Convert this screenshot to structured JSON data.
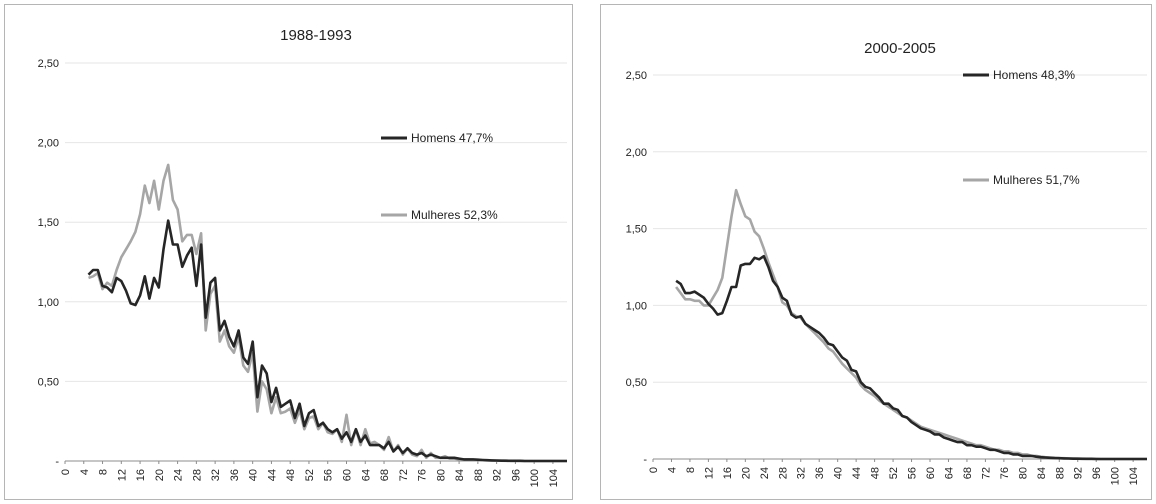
{
  "colors": {
    "homens": "#262626",
    "mulheres": "#a6a6a6",
    "grid": "#e6e6e6",
    "axis": "#8c8c8c"
  },
  "chart_data": [
    {
      "type": "line",
      "title": "1988-1993",
      "xlabel": "",
      "ylabel": "",
      "ylim": [
        0,
        2.5
      ],
      "y_ticks": [
        0,
        0.5,
        1.0,
        1.5,
        2.0,
        2.5
      ],
      "y_tick_labels": [
        "-",
        "0,50",
        "1,00",
        "1,50",
        "2,00",
        "2,50"
      ],
      "x_tick_labels": [
        "0",
        "4",
        "8",
        "12",
        "16",
        "20",
        "24",
        "28",
        "32",
        "36",
        "40",
        "44",
        "48",
        "52",
        "56",
        "60",
        "64",
        "68",
        "72",
        "76",
        "80",
        "84",
        "88",
        "92",
        "96",
        "100",
        "104"
      ],
      "xlim": [
        0,
        107
      ],
      "grid": true,
      "legend_placement": "right",
      "series": [
        {
          "name": "Homens 47,7%",
          "color": "#262626",
          "x": [
            5,
            6,
            7,
            8,
            9,
            10,
            11,
            12,
            13,
            14,
            15,
            16,
            17,
            18,
            19,
            20,
            21,
            22,
            23,
            24,
            25,
            26,
            27,
            28,
            29,
            30,
            31,
            32,
            33,
            34,
            35,
            36,
            37,
            38,
            39,
            40,
            41,
            42,
            43,
            44,
            45,
            46,
            47,
            48,
            49,
            50,
            51,
            52,
            53,
            54,
            55,
            56,
            57,
            58,
            59,
            60,
            61,
            62,
            63,
            64,
            65,
            66,
            67,
            68,
            69,
            70,
            71,
            72,
            73,
            74,
            75,
            76,
            77,
            78,
            79,
            80,
            81,
            82,
            83,
            84,
            85,
            86,
            87,
            88,
            89,
            90,
            91,
            92,
            93,
            94,
            95,
            96,
            97,
            98,
            99,
            100,
            101,
            102,
            103,
            104,
            105,
            106,
            107
          ],
          "y": [
            1.17,
            1.2,
            1.2,
            1.1,
            1.09,
            1.06,
            1.15,
            1.13,
            1.07,
            0.99,
            0.98,
            1.04,
            1.16,
            1.02,
            1.15,
            1.09,
            1.33,
            1.51,
            1.36,
            1.36,
            1.22,
            1.29,
            1.34,
            1.1,
            1.36,
            0.9,
            1.12,
            1.15,
            0.82,
            0.88,
            0.78,
            0.72,
            0.82,
            0.65,
            0.61,
            0.75,
            0.4,
            0.6,
            0.55,
            0.37,
            0.46,
            0.34,
            0.36,
            0.38,
            0.27,
            0.36,
            0.22,
            0.3,
            0.32,
            0.22,
            0.24,
            0.2,
            0.18,
            0.2,
            0.14,
            0.18,
            0.12,
            0.2,
            0.12,
            0.16,
            0.1,
            0.1,
            0.1,
            0.08,
            0.12,
            0.06,
            0.09,
            0.05,
            0.08,
            0.05,
            0.04,
            0.05,
            0.03,
            0.04,
            0.03,
            0.02,
            0.02,
            0.02,
            0.02,
            0.015,
            0.01,
            0.01,
            0.01,
            0.008,
            0.006,
            0.005,
            0.004,
            0.003,
            0.002,
            0.002,
            0.001,
            0.001,
            0.001,
            0,
            0,
            0,
            0,
            0,
            0,
            0,
            0,
            0,
            0
          ]
        },
        {
          "name": "Mulheres 52,3%",
          "color": "#a6a6a6",
          "x": [
            5,
            6,
            7,
            8,
            9,
            10,
            11,
            12,
            13,
            14,
            15,
            16,
            17,
            18,
            19,
            20,
            21,
            22,
            23,
            24,
            25,
            26,
            27,
            28,
            29,
            30,
            31,
            32,
            33,
            34,
            35,
            36,
            37,
            38,
            39,
            40,
            41,
            42,
            43,
            44,
            45,
            46,
            47,
            48,
            49,
            50,
            51,
            52,
            53,
            54,
            55,
            56,
            57,
            58,
            59,
            60,
            61,
            62,
            63,
            64,
            65,
            66,
            67,
            68,
            69,
            70,
            71,
            72,
            73,
            74,
            75,
            76,
            77,
            78,
            79,
            80,
            81,
            82,
            83,
            84,
            85,
            86,
            87,
            88,
            89,
            90,
            91,
            92,
            93,
            94,
            95,
            96,
            97,
            98,
            99,
            100,
            101,
            102,
            103,
            104,
            105,
            106,
            107
          ],
          "y": [
            1.15,
            1.16,
            1.18,
            1.08,
            1.12,
            1.1,
            1.2,
            1.28,
            1.33,
            1.38,
            1.44,
            1.55,
            1.73,
            1.62,
            1.76,
            1.58,
            1.76,
            1.86,
            1.64,
            1.58,
            1.38,
            1.42,
            1.42,
            1.3,
            1.43,
            0.82,
            1.05,
            1.1,
            0.75,
            0.82,
            0.72,
            0.68,
            0.78,
            0.6,
            0.56,
            0.68,
            0.31,
            0.5,
            0.45,
            0.3,
            0.4,
            0.3,
            0.31,
            0.33,
            0.24,
            0.32,
            0.2,
            0.27,
            0.28,
            0.2,
            0.24,
            0.18,
            0.17,
            0.2,
            0.12,
            0.29,
            0.1,
            0.2,
            0.1,
            0.2,
            0.11,
            0.12,
            0.1,
            0.07,
            0.15,
            0.06,
            0.1,
            0.04,
            0.08,
            0.04,
            0.03,
            0.07,
            0.02,
            0.05,
            0.02,
            0.02,
            0.03,
            0.015,
            0.015,
            0.01,
            0.01,
            0.01,
            0.008,
            0.006,
            0.005,
            0.004,
            0.003,
            0.002,
            0.002,
            0.001,
            0.001,
            0.001,
            0.001,
            0,
            0,
            0,
            0,
            0,
            0,
            0,
            0,
            0,
            0
          ]
        }
      ]
    },
    {
      "type": "line",
      "title": "2000-2005",
      "xlabel": "",
      "ylabel": "",
      "ylim": [
        0,
        2.5
      ],
      "y_ticks": [
        0,
        0.5,
        1.0,
        1.5,
        2.0,
        2.5
      ],
      "y_tick_labels": [
        "-",
        "0,50",
        "1,00",
        "1,50",
        "2,00",
        "2,50"
      ],
      "x_tick_labels": [
        "0",
        "4",
        "8",
        "12",
        "16",
        "20",
        "24",
        "28",
        "32",
        "36",
        "40",
        "44",
        "48",
        "52",
        "56",
        "60",
        "64",
        "68",
        "72",
        "76",
        "80",
        "84",
        "88",
        "92",
        "96",
        "100",
        "104"
      ],
      "xlim": [
        0,
        107
      ],
      "grid": true,
      "legend_placement": "right",
      "series": [
        {
          "name": "Homens 48,3%",
          "color": "#262626",
          "x": [
            5,
            6,
            7,
            8,
            9,
            10,
            11,
            12,
            13,
            14,
            15,
            16,
            17,
            18,
            19,
            20,
            21,
            22,
            23,
            24,
            25,
            26,
            27,
            28,
            29,
            30,
            31,
            32,
            33,
            34,
            35,
            36,
            37,
            38,
            39,
            40,
            41,
            42,
            43,
            44,
            45,
            46,
            47,
            48,
            49,
            50,
            51,
            52,
            53,
            54,
            55,
            56,
            57,
            58,
            59,
            60,
            61,
            62,
            63,
            64,
            65,
            66,
            67,
            68,
            69,
            70,
            71,
            72,
            73,
            74,
            75,
            76,
            77,
            78,
            79,
            80,
            81,
            82,
            83,
            84,
            85,
            86,
            87,
            88,
            89,
            90,
            91,
            92,
            93,
            94,
            95,
            96,
            97,
            98,
            99,
            100,
            101,
            102,
            103,
            104,
            105,
            106,
            107
          ],
          "y": [
            1.16,
            1.14,
            1.08,
            1.08,
            1.09,
            1.07,
            1.05,
            1.01,
            0.98,
            0.94,
            0.95,
            1.03,
            1.12,
            1.12,
            1.26,
            1.27,
            1.27,
            1.31,
            1.3,
            1.32,
            1.25,
            1.16,
            1.12,
            1.05,
            1.03,
            0.94,
            0.92,
            0.93,
            0.88,
            0.86,
            0.84,
            0.82,
            0.79,
            0.75,
            0.74,
            0.7,
            0.66,
            0.64,
            0.58,
            0.57,
            0.5,
            0.47,
            0.46,
            0.43,
            0.4,
            0.36,
            0.36,
            0.33,
            0.32,
            0.28,
            0.27,
            0.24,
            0.22,
            0.2,
            0.19,
            0.18,
            0.16,
            0.16,
            0.14,
            0.13,
            0.12,
            0.11,
            0.11,
            0.09,
            0.09,
            0.08,
            0.08,
            0.07,
            0.06,
            0.06,
            0.05,
            0.04,
            0.04,
            0.03,
            0.03,
            0.02,
            0.02,
            0.02,
            0.015,
            0.012,
            0.01,
            0.008,
            0.006,
            0.005,
            0.004,
            0.003,
            0.002,
            0.002,
            0.001,
            0.001,
            0.001,
            0,
            0,
            0,
            0,
            0,
            0,
            0,
            0,
            0,
            0,
            0,
            0
          ]
        },
        {
          "name": "Mulheres 51,7%",
          "color": "#a6a6a6",
          "x": [
            5,
            6,
            7,
            8,
            9,
            10,
            11,
            12,
            13,
            14,
            15,
            16,
            17,
            18,
            19,
            20,
            21,
            22,
            23,
            24,
            25,
            26,
            27,
            28,
            29,
            30,
            31,
            32,
            33,
            34,
            35,
            36,
            37,
            38,
            39,
            40,
            41,
            42,
            43,
            44,
            45,
            46,
            47,
            48,
            49,
            50,
            51,
            52,
            53,
            54,
            55,
            56,
            57,
            58,
            59,
            60,
            61,
            62,
            63,
            64,
            65,
            66,
            67,
            68,
            69,
            70,
            71,
            72,
            73,
            74,
            75,
            76,
            77,
            78,
            79,
            80,
            81,
            82,
            83,
            84,
            85,
            86,
            87,
            88,
            89,
            90,
            91,
            92,
            93,
            94,
            95,
            96,
            97,
            98,
            99,
            100,
            101,
            102,
            103,
            104,
            105,
            106,
            107
          ],
          "y": [
            1.12,
            1.08,
            1.04,
            1.04,
            1.03,
            1.03,
            1.0,
            1.0,
            1.05,
            1.1,
            1.18,
            1.38,
            1.58,
            1.75,
            1.66,
            1.58,
            1.56,
            1.48,
            1.45,
            1.37,
            1.28,
            1.2,
            1.12,
            1.02,
            1.0,
            0.95,
            0.93,
            0.92,
            0.88,
            0.85,
            0.82,
            0.79,
            0.76,
            0.72,
            0.7,
            0.66,
            0.62,
            0.59,
            0.56,
            0.53,
            0.48,
            0.45,
            0.43,
            0.41,
            0.38,
            0.36,
            0.34,
            0.32,
            0.3,
            0.28,
            0.27,
            0.25,
            0.23,
            0.21,
            0.2,
            0.19,
            0.18,
            0.17,
            0.16,
            0.15,
            0.14,
            0.13,
            0.12,
            0.11,
            0.1,
            0.09,
            0.09,
            0.08,
            0.07,
            0.06,
            0.06,
            0.05,
            0.05,
            0.04,
            0.04,
            0.03,
            0.03,
            0.02,
            0.02,
            0.015,
            0.012,
            0.01,
            0.008,
            0.006,
            0.005,
            0.004,
            0.003,
            0.002,
            0.002,
            0.001,
            0.001,
            0.001,
            0,
            0,
            0,
            0,
            0,
            0,
            0,
            0,
            0,
            0,
            0
          ]
        }
      ]
    }
  ]
}
